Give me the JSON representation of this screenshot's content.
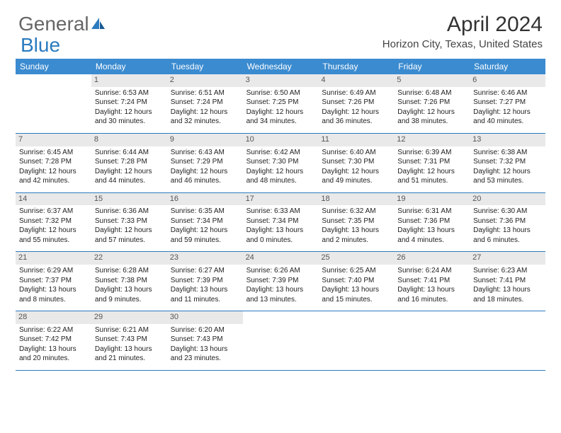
{
  "logo": {
    "part1": "General",
    "part2": "Blue"
  },
  "title": "April 2024",
  "location": "Horizon City, Texas, United States",
  "colors": {
    "header_bg": "#3b8bd0",
    "border": "#2b7bbf",
    "daynum_bg": "#e9e9e9",
    "text": "#222222",
    "logo_gray": "#666666",
    "logo_blue": "#2b7bbf"
  },
  "day_names": [
    "Sunday",
    "Monday",
    "Tuesday",
    "Wednesday",
    "Thursday",
    "Friday",
    "Saturday"
  ],
  "weeks": [
    [
      {
        "blank": true
      },
      {
        "d": "1",
        "sr": "Sunrise: 6:53 AM",
        "ss": "Sunset: 7:24 PM",
        "dl1": "Daylight: 12 hours",
        "dl2": "and 30 minutes."
      },
      {
        "d": "2",
        "sr": "Sunrise: 6:51 AM",
        "ss": "Sunset: 7:24 PM",
        "dl1": "Daylight: 12 hours",
        "dl2": "and 32 minutes."
      },
      {
        "d": "3",
        "sr": "Sunrise: 6:50 AM",
        "ss": "Sunset: 7:25 PM",
        "dl1": "Daylight: 12 hours",
        "dl2": "and 34 minutes."
      },
      {
        "d": "4",
        "sr": "Sunrise: 6:49 AM",
        "ss": "Sunset: 7:26 PM",
        "dl1": "Daylight: 12 hours",
        "dl2": "and 36 minutes."
      },
      {
        "d": "5",
        "sr": "Sunrise: 6:48 AM",
        "ss": "Sunset: 7:26 PM",
        "dl1": "Daylight: 12 hours",
        "dl2": "and 38 minutes."
      },
      {
        "d": "6",
        "sr": "Sunrise: 6:46 AM",
        "ss": "Sunset: 7:27 PM",
        "dl1": "Daylight: 12 hours",
        "dl2": "and 40 minutes."
      }
    ],
    [
      {
        "d": "7",
        "sr": "Sunrise: 6:45 AM",
        "ss": "Sunset: 7:28 PM",
        "dl1": "Daylight: 12 hours",
        "dl2": "and 42 minutes."
      },
      {
        "d": "8",
        "sr": "Sunrise: 6:44 AM",
        "ss": "Sunset: 7:28 PM",
        "dl1": "Daylight: 12 hours",
        "dl2": "and 44 minutes."
      },
      {
        "d": "9",
        "sr": "Sunrise: 6:43 AM",
        "ss": "Sunset: 7:29 PM",
        "dl1": "Daylight: 12 hours",
        "dl2": "and 46 minutes."
      },
      {
        "d": "10",
        "sr": "Sunrise: 6:42 AM",
        "ss": "Sunset: 7:30 PM",
        "dl1": "Daylight: 12 hours",
        "dl2": "and 48 minutes."
      },
      {
        "d": "11",
        "sr": "Sunrise: 6:40 AM",
        "ss": "Sunset: 7:30 PM",
        "dl1": "Daylight: 12 hours",
        "dl2": "and 49 minutes."
      },
      {
        "d": "12",
        "sr": "Sunrise: 6:39 AM",
        "ss": "Sunset: 7:31 PM",
        "dl1": "Daylight: 12 hours",
        "dl2": "and 51 minutes."
      },
      {
        "d": "13",
        "sr": "Sunrise: 6:38 AM",
        "ss": "Sunset: 7:32 PM",
        "dl1": "Daylight: 12 hours",
        "dl2": "and 53 minutes."
      }
    ],
    [
      {
        "d": "14",
        "sr": "Sunrise: 6:37 AM",
        "ss": "Sunset: 7:32 PM",
        "dl1": "Daylight: 12 hours",
        "dl2": "and 55 minutes."
      },
      {
        "d": "15",
        "sr": "Sunrise: 6:36 AM",
        "ss": "Sunset: 7:33 PM",
        "dl1": "Daylight: 12 hours",
        "dl2": "and 57 minutes."
      },
      {
        "d": "16",
        "sr": "Sunrise: 6:35 AM",
        "ss": "Sunset: 7:34 PM",
        "dl1": "Daylight: 12 hours",
        "dl2": "and 59 minutes."
      },
      {
        "d": "17",
        "sr": "Sunrise: 6:33 AM",
        "ss": "Sunset: 7:34 PM",
        "dl1": "Daylight: 13 hours",
        "dl2": "and 0 minutes."
      },
      {
        "d": "18",
        "sr": "Sunrise: 6:32 AM",
        "ss": "Sunset: 7:35 PM",
        "dl1": "Daylight: 13 hours",
        "dl2": "and 2 minutes."
      },
      {
        "d": "19",
        "sr": "Sunrise: 6:31 AM",
        "ss": "Sunset: 7:36 PM",
        "dl1": "Daylight: 13 hours",
        "dl2": "and 4 minutes."
      },
      {
        "d": "20",
        "sr": "Sunrise: 6:30 AM",
        "ss": "Sunset: 7:36 PM",
        "dl1": "Daylight: 13 hours",
        "dl2": "and 6 minutes."
      }
    ],
    [
      {
        "d": "21",
        "sr": "Sunrise: 6:29 AM",
        "ss": "Sunset: 7:37 PM",
        "dl1": "Daylight: 13 hours",
        "dl2": "and 8 minutes."
      },
      {
        "d": "22",
        "sr": "Sunrise: 6:28 AM",
        "ss": "Sunset: 7:38 PM",
        "dl1": "Daylight: 13 hours",
        "dl2": "and 9 minutes."
      },
      {
        "d": "23",
        "sr": "Sunrise: 6:27 AM",
        "ss": "Sunset: 7:39 PM",
        "dl1": "Daylight: 13 hours",
        "dl2": "and 11 minutes."
      },
      {
        "d": "24",
        "sr": "Sunrise: 6:26 AM",
        "ss": "Sunset: 7:39 PM",
        "dl1": "Daylight: 13 hours",
        "dl2": "and 13 minutes."
      },
      {
        "d": "25",
        "sr": "Sunrise: 6:25 AM",
        "ss": "Sunset: 7:40 PM",
        "dl1": "Daylight: 13 hours",
        "dl2": "and 15 minutes."
      },
      {
        "d": "26",
        "sr": "Sunrise: 6:24 AM",
        "ss": "Sunset: 7:41 PM",
        "dl1": "Daylight: 13 hours",
        "dl2": "and 16 minutes."
      },
      {
        "d": "27",
        "sr": "Sunrise: 6:23 AM",
        "ss": "Sunset: 7:41 PM",
        "dl1": "Daylight: 13 hours",
        "dl2": "and 18 minutes."
      }
    ],
    [
      {
        "d": "28",
        "sr": "Sunrise: 6:22 AM",
        "ss": "Sunset: 7:42 PM",
        "dl1": "Daylight: 13 hours",
        "dl2": "and 20 minutes."
      },
      {
        "d": "29",
        "sr": "Sunrise: 6:21 AM",
        "ss": "Sunset: 7:43 PM",
        "dl1": "Daylight: 13 hours",
        "dl2": "and 21 minutes."
      },
      {
        "d": "30",
        "sr": "Sunrise: 6:20 AM",
        "ss": "Sunset: 7:43 PM",
        "dl1": "Daylight: 13 hours",
        "dl2": "and 23 minutes."
      },
      {
        "blank": true
      },
      {
        "blank": true
      },
      {
        "blank": true
      },
      {
        "blank": true
      }
    ]
  ]
}
